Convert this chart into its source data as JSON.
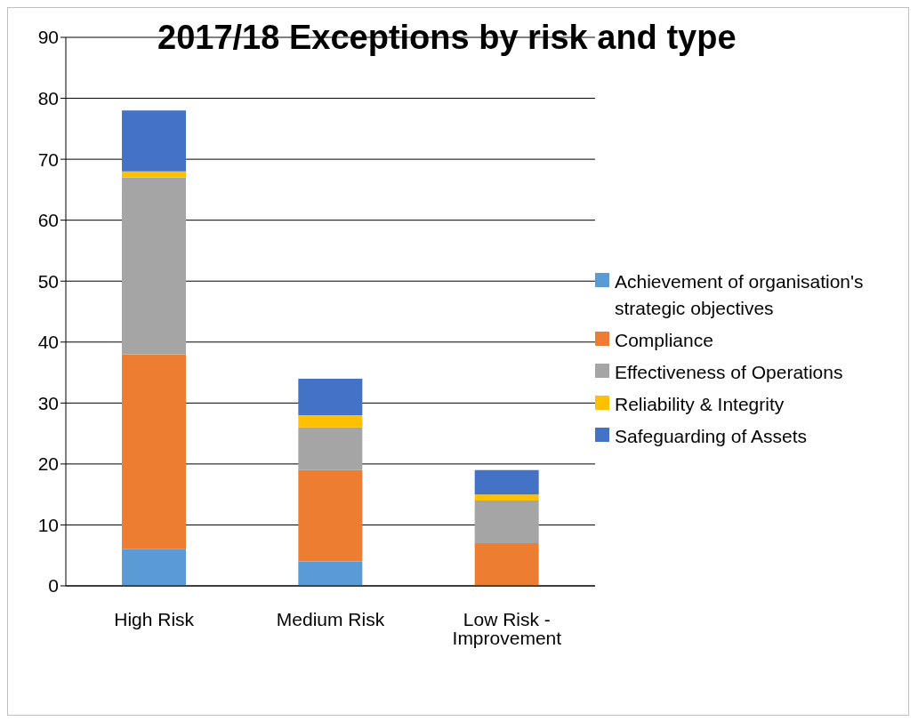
{
  "chart_data": {
    "type": "bar",
    "title": "2017/18 Exceptions by risk and type",
    "categories": [
      "High Risk",
      "Medium Risk",
      "Low Risk - Improvement"
    ],
    "stacked": true,
    "series": [
      {
        "name": "Achievement of organisation's strategic objectives",
        "color": "#5b9bd5",
        "values": [
          6,
          4,
          0
        ]
      },
      {
        "name": "Compliance",
        "color": "#ed7d31",
        "values": [
          32,
          15,
          7
        ]
      },
      {
        "name": "Effectiveness of Operations",
        "color": "#a5a5a5",
        "values": [
          29,
          7,
          7
        ]
      },
      {
        "name": "Reliability & Integrity",
        "color": "#ffc000",
        "values": [
          1,
          2,
          1
        ]
      },
      {
        "name": "Safeguarding of Assets",
        "color": "#4472c4",
        "values": [
          10,
          6,
          4
        ]
      }
    ],
    "ylim": [
      0,
      90
    ],
    "yticks": [
      0,
      10,
      20,
      30,
      40,
      50,
      60,
      70,
      80,
      90
    ],
    "grid": "y",
    "legend": "right"
  }
}
